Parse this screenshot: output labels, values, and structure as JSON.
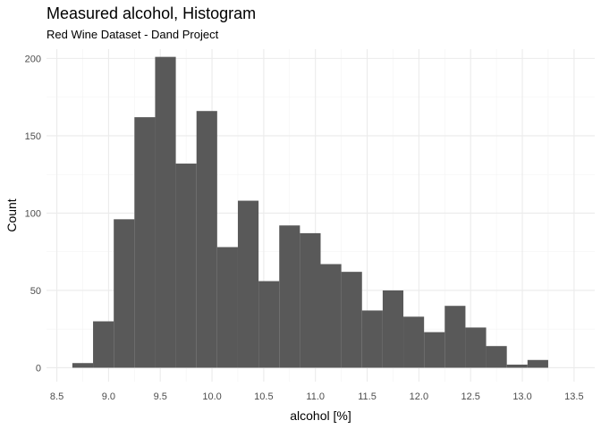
{
  "chart_data": {
    "type": "bar",
    "title": "Measured alcohol, Histogram",
    "subtitle": "Red Wine Dataset - Dand Project",
    "xlabel": "alcohol [%]",
    "ylabel": "Count",
    "xlim": [
      8.4,
      13.7
    ],
    "ylim": [
      -9,
      206
    ],
    "x_ticks": [
      "8.5",
      "9.0",
      "9.5",
      "10.0",
      "10.5",
      "11.0",
      "11.5",
      "12.0",
      "12.5",
      "13.0",
      "13.5"
    ],
    "y_ticks": [
      "0",
      "50",
      "100",
      "150",
      "200"
    ],
    "bin_width": 0.2,
    "bins": [
      {
        "x0": 8.65,
        "x1": 8.85,
        "count": 3
      },
      {
        "x0": 8.85,
        "x1": 9.05,
        "count": 30
      },
      {
        "x0": 9.05,
        "x1": 9.25,
        "count": 96
      },
      {
        "x0": 9.25,
        "x1": 9.45,
        "count": 162
      },
      {
        "x0": 9.45,
        "x1": 9.65,
        "count": 201
      },
      {
        "x0": 9.65,
        "x1": 9.85,
        "count": 132
      },
      {
        "x0": 9.85,
        "x1": 10.05,
        "count": 166
      },
      {
        "x0": 10.05,
        "x1": 10.25,
        "count": 78
      },
      {
        "x0": 10.25,
        "x1": 10.45,
        "count": 108
      },
      {
        "x0": 10.45,
        "x1": 10.65,
        "count": 56
      },
      {
        "x0": 10.65,
        "x1": 10.85,
        "count": 92
      },
      {
        "x0": 10.85,
        "x1": 11.05,
        "count": 87
      },
      {
        "x0": 11.05,
        "x1": 11.25,
        "count": 67
      },
      {
        "x0": 11.25,
        "x1": 11.45,
        "count": 62
      },
      {
        "x0": 11.45,
        "x1": 11.65,
        "count": 37
      },
      {
        "x0": 11.65,
        "x1": 11.85,
        "count": 50
      },
      {
        "x0": 11.85,
        "x1": 12.05,
        "count": 33
      },
      {
        "x0": 12.05,
        "x1": 12.25,
        "count": 23
      },
      {
        "x0": 12.25,
        "x1": 12.45,
        "count": 40
      },
      {
        "x0": 12.45,
        "x1": 12.65,
        "count": 26
      },
      {
        "x0": 12.65,
        "x1": 12.85,
        "count": 14
      },
      {
        "x0": 12.85,
        "x1": 13.05,
        "count": 2
      },
      {
        "x0": 13.05,
        "x1": 13.25,
        "count": 5
      }
    ],
    "bar_color": "#595959",
    "grid": true,
    "legend": "none"
  }
}
